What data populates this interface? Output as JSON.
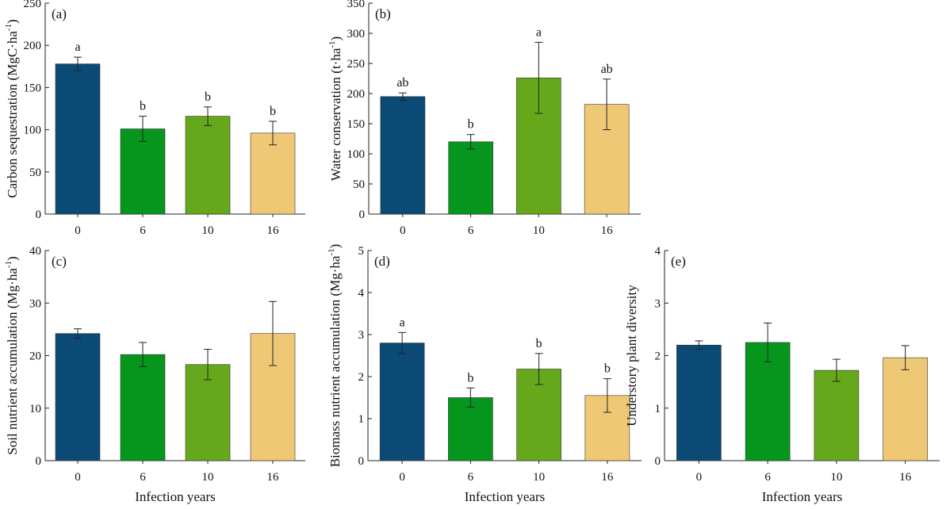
{
  "colors": [
    "#0b4a75",
    "#06961e",
    "#66a81c",
    "#efc875"
  ],
  "xlabel": "Infection years",
  "chart_data": [
    {
      "type": "bar",
      "panel_label": "(a)",
      "categories": [
        "0",
        "6",
        "10",
        "16"
      ],
      "values": [
        178,
        101,
        116,
        96
      ],
      "errors": [
        8,
        15,
        11,
        14
      ],
      "significance": [
        "a",
        "b",
        "b",
        "b"
      ],
      "ylabel": "Carbon sequestration (MgC·ha",
      "ylabel_sup": "-1",
      "ylabel_suffix": ")",
      "xlabel": "",
      "ylim": [
        0,
        250
      ],
      "yticks": [
        0,
        50,
        100,
        150,
        200,
        250
      ]
    },
    {
      "type": "bar",
      "panel_label": "(b)",
      "categories": [
        "0",
        "6",
        "10",
        "16"
      ],
      "values": [
        195,
        120,
        226,
        182
      ],
      "errors": [
        6,
        12,
        59,
        42
      ],
      "significance": [
        "ab",
        "b",
        "a",
        "ab"
      ],
      "ylabel": "Water conservation (t·ha",
      "ylabel_sup": "-1",
      "ylabel_suffix": ")",
      "xlabel": "",
      "ylim": [
        0,
        350
      ],
      "yticks": [
        0,
        50,
        100,
        150,
        200,
        250,
        300,
        350
      ]
    },
    {
      "type": "bar",
      "panel_label": "(c)",
      "categories": [
        "0",
        "6",
        "10",
        "16"
      ],
      "values": [
        24.2,
        20.2,
        18.3,
        24.2
      ],
      "errors": [
        0.9,
        2.3,
        2.9,
        6.1
      ],
      "significance": [
        "",
        "",
        "",
        ""
      ],
      "ylabel": "Soil nutrient accumulation (Mg·ha",
      "ylabel_sup": "-1",
      "ylabel_suffix": ")",
      "xlabel": "Infection years",
      "ylim": [
        0,
        40
      ],
      "yticks": [
        0,
        10,
        20,
        30,
        40
      ]
    },
    {
      "type": "bar",
      "panel_label": "(d)",
      "categories": [
        "0",
        "6",
        "10",
        "16"
      ],
      "values": [
        2.8,
        1.5,
        2.18,
        1.55
      ],
      "errors": [
        0.25,
        0.23,
        0.37,
        0.4
      ],
      "significance": [
        "a",
        "b",
        "b",
        "b"
      ],
      "ylabel": "Biomass nutrient accumulation (Mg·ha",
      "ylabel_sup": "-1",
      "ylabel_suffix": ")",
      "xlabel": "Infection years",
      "ylim": [
        0,
        5
      ],
      "yticks": [
        0,
        1,
        2,
        3,
        4,
        5
      ]
    },
    {
      "type": "bar",
      "panel_label": "(e)",
      "categories": [
        "0",
        "6",
        "10",
        "16"
      ],
      "values": [
        2.2,
        2.25,
        1.72,
        1.96
      ],
      "errors": [
        0.08,
        0.37,
        0.21,
        0.23
      ],
      "significance": [
        "",
        "",
        "",
        ""
      ],
      "ylabel": "Understory plant diversity",
      "ylabel_sup": "",
      "ylabel_suffix": "",
      "xlabel": "Infection years",
      "ylim": [
        0,
        4
      ],
      "yticks": [
        0,
        1,
        2,
        3,
        4
      ]
    }
  ]
}
